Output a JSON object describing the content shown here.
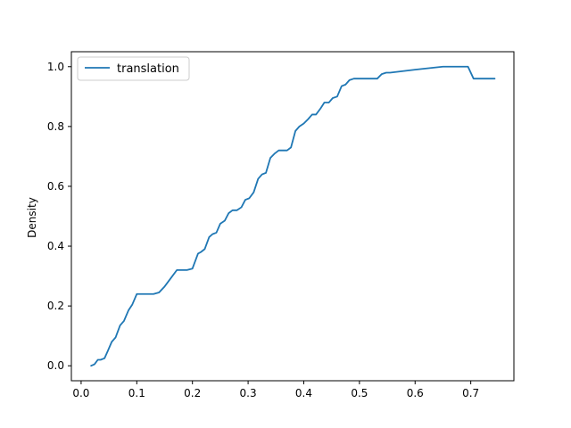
{
  "chart_data": {
    "type": "line",
    "title": "",
    "xlabel": "",
    "ylabel": "Density",
    "xlim": [
      -0.0175,
      0.7775
    ],
    "ylim": [
      -0.05,
      1.05
    ],
    "x_ticks": [
      0.0,
      0.1,
      0.2,
      0.3,
      0.4,
      0.5,
      0.6,
      0.7
    ],
    "x_tick_labels": [
      "0.0",
      "0.1",
      "0.2",
      "0.3",
      "0.4",
      "0.5",
      "0.6",
      "0.7"
    ],
    "y_ticks": [
      0.0,
      0.2,
      0.4,
      0.6,
      0.8,
      1.0
    ],
    "y_tick_labels": [
      "0.0",
      "0.2",
      "0.4",
      "0.6",
      "0.8",
      "1.0"
    ],
    "grid": false,
    "legend": {
      "position": "upper left",
      "entries": [
        "translation"
      ]
    },
    "series": [
      {
        "name": "translation",
        "color": "#1f77b4",
        "x": [
          0.018,
          0.024,
          0.03,
          0.035,
          0.042,
          0.048,
          0.055,
          0.062,
          0.07,
          0.077,
          0.085,
          0.092,
          0.1,
          0.106,
          0.112,
          0.12,
          0.13,
          0.14,
          0.15,
          0.16,
          0.172,
          0.182,
          0.19,
          0.2,
          0.21,
          0.215,
          0.222,
          0.23,
          0.236,
          0.243,
          0.25,
          0.258,
          0.265,
          0.272,
          0.28,
          0.288,
          0.295,
          0.302,
          0.31,
          0.318,
          0.325,
          0.332,
          0.34,
          0.348,
          0.355,
          0.362,
          0.37,
          0.377,
          0.385,
          0.392,
          0.4,
          0.408,
          0.415,
          0.422,
          0.43,
          0.437,
          0.445,
          0.452,
          0.46,
          0.468,
          0.475,
          0.482,
          0.49,
          0.497,
          0.505,
          0.512,
          0.518,
          0.525,
          0.532,
          0.54,
          0.548,
          0.555,
          0.6,
          0.65,
          0.695,
          0.705,
          0.712,
          0.718,
          0.725,
          0.732,
          0.738,
          0.743
        ],
        "y": [
          0.0,
          0.005,
          0.02,
          0.02,
          0.025,
          0.05,
          0.08,
          0.095,
          0.135,
          0.15,
          0.185,
          0.205,
          0.24,
          0.24,
          0.24,
          0.24,
          0.24,
          0.245,
          0.265,
          0.29,
          0.32,
          0.32,
          0.32,
          0.325,
          0.375,
          0.38,
          0.39,
          0.43,
          0.44,
          0.445,
          0.475,
          0.485,
          0.51,
          0.52,
          0.52,
          0.53,
          0.555,
          0.56,
          0.58,
          0.625,
          0.64,
          0.645,
          0.695,
          0.71,
          0.72,
          0.72,
          0.72,
          0.73,
          0.785,
          0.8,
          0.81,
          0.825,
          0.84,
          0.84,
          0.86,
          0.88,
          0.88,
          0.895,
          0.9,
          0.935,
          0.94,
          0.955,
          0.96,
          0.96,
          0.96,
          0.96,
          0.96,
          0.96,
          0.96,
          0.975,
          0.98,
          0.98,
          0.99,
          1.0,
          1.0,
          0.96,
          0.96,
          0.96,
          0.96,
          0.96,
          0.96,
          0.96
        ]
      }
    ]
  }
}
